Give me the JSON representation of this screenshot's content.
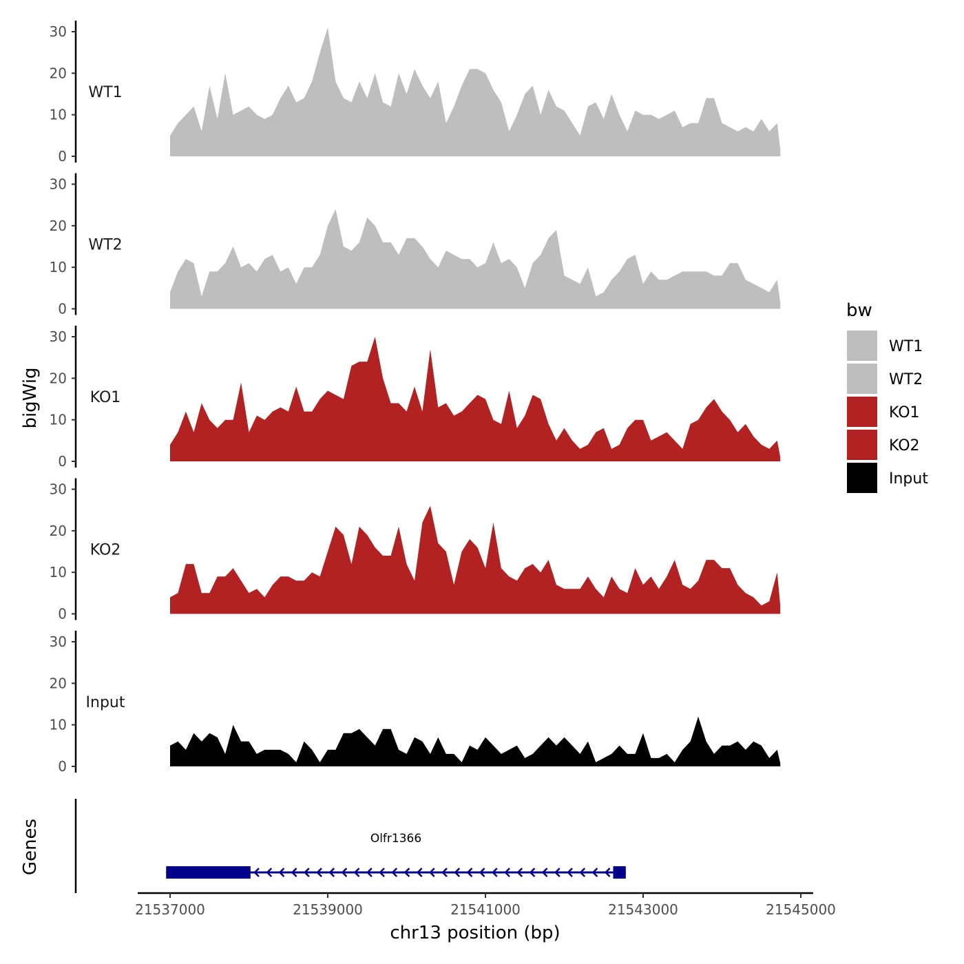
{
  "chart_data": {
    "type": "area",
    "xlabel": "chr13 position (bp)",
    "ylabel": "bigWig",
    "gene_track_label": "Genes",
    "xlim": [
      21536500,
      21545200
    ],
    "xticks": [
      21537000,
      21539000,
      21541000,
      21543000,
      21545000
    ],
    "xtick_labels": [
      "21537000",
      "21539000",
      "21541000",
      "21543000",
      "21545000"
    ],
    "ylim": [
      0,
      31
    ],
    "yticks": [
      0,
      10,
      20,
      30
    ],
    "ytick_labels": [
      "0",
      "10",
      "20",
      "30"
    ],
    "x_start": 21537000,
    "x_step": 100,
    "x_end": 21544740,
    "series": [
      {
        "name": "WT1",
        "color": "#BEBEBE",
        "values": [
          5,
          8,
          10,
          12,
          6,
          17,
          9,
          20,
          10,
          11,
          12,
          10,
          9,
          10,
          14,
          17,
          13,
          14,
          18,
          25,
          31,
          18,
          14,
          13,
          18,
          14,
          20,
          13,
          12,
          20,
          15,
          21,
          17,
          14,
          18,
          8,
          12,
          17,
          21,
          21,
          20,
          16,
          13,
          6,
          10,
          15,
          17,
          10,
          16,
          12,
          11,
          8,
          5,
          12,
          13,
          9,
          15,
          10,
          6,
          11,
          10,
          10,
          9,
          10,
          11,
          7,
          8,
          8,
          14,
          14,
          8,
          7,
          6,
          7,
          6,
          9,
          6,
          8
        ]
      },
      {
        "name": "WT2",
        "color": "#BEBEBE",
        "values": [
          4,
          9,
          12,
          11,
          3,
          9,
          9,
          11,
          15,
          10,
          11,
          9,
          12,
          13,
          9,
          10,
          6,
          10,
          10,
          13,
          20,
          24,
          15,
          14,
          16,
          22,
          20,
          16,
          16,
          13,
          17,
          17,
          15,
          12,
          10,
          14,
          13,
          12,
          12,
          10,
          11,
          16,
          11,
          12,
          10,
          5,
          11,
          13,
          17,
          19,
          8,
          7,
          6,
          10,
          3,
          4,
          7,
          9,
          12,
          13,
          6,
          9,
          7,
          7,
          8,
          9,
          9,
          9,
          9,
          8,
          8,
          11,
          11,
          7,
          6,
          5,
          4,
          7
        ]
      },
      {
        "name": "KO1",
        "color": "#B22222",
        "values": [
          4,
          7,
          12,
          7,
          14,
          10,
          8,
          10,
          10,
          19,
          7,
          11,
          10,
          12,
          13,
          12,
          18,
          12,
          12,
          15,
          17,
          16,
          15,
          23,
          24,
          24,
          30,
          20,
          14,
          14,
          12,
          18,
          12,
          27,
          13,
          14,
          11,
          12,
          14,
          16,
          15,
          10,
          9,
          17,
          8,
          11,
          16,
          15,
          9,
          5,
          8,
          5,
          3,
          4,
          7,
          8,
          3,
          4,
          8,
          10,
          10,
          5,
          6,
          7,
          5,
          3,
          9,
          10,
          13,
          15,
          12,
          10,
          7,
          9,
          6,
          4,
          3,
          5
        ]
      },
      {
        "name": "KO2",
        "color": "#B22222",
        "values": [
          4,
          5,
          12,
          12,
          5,
          5,
          9,
          9,
          11,
          8,
          5,
          6,
          4,
          7,
          9,
          9,
          8,
          8,
          10,
          9,
          15,
          21,
          19,
          12,
          21,
          19,
          16,
          14,
          14,
          21,
          12,
          8,
          22,
          26,
          17,
          15,
          7,
          15,
          18,
          16,
          11,
          22,
          11,
          9,
          8,
          11,
          12,
          10,
          13,
          7,
          6,
          6,
          6,
          9,
          6,
          4,
          9,
          6,
          5,
          11,
          7,
          9,
          6,
          9,
          13,
          7,
          6,
          8,
          13,
          13,
          11,
          11,
          7,
          5,
          4,
          2,
          3,
          10
        ]
      },
      {
        "name": "Input",
        "color": "#000000",
        "values": [
          5,
          6,
          4,
          8,
          6,
          8,
          7,
          3,
          10,
          6,
          6,
          3,
          4,
          4,
          4,
          3,
          1,
          6,
          4,
          1,
          4,
          4,
          8,
          8,
          9,
          7,
          5,
          9,
          9,
          4,
          3,
          7,
          6,
          3,
          7,
          3,
          3,
          1,
          5,
          4,
          7,
          5,
          3,
          4,
          5,
          2,
          3,
          5,
          7,
          5,
          7,
          5,
          3,
          6,
          1,
          2,
          3,
          5,
          3,
          3,
          8,
          2,
          2,
          3,
          1,
          4,
          6,
          12,
          6,
          3,
          5,
          5,
          6,
          4,
          6,
          5,
          2,
          4
        ]
      }
    ],
    "legend": {
      "title": "bw",
      "position": "right",
      "entries": [
        "WT1",
        "WT2",
        "KO1",
        "KO2",
        "Input"
      ]
    },
    "gene": {
      "name": "Olfr1366",
      "strand": "-",
      "color": "#00008B",
      "start": 21536950,
      "end": 21542780,
      "exons": [
        [
          21536950,
          21538020
        ],
        [
          21542620,
          21542780
        ]
      ]
    }
  }
}
